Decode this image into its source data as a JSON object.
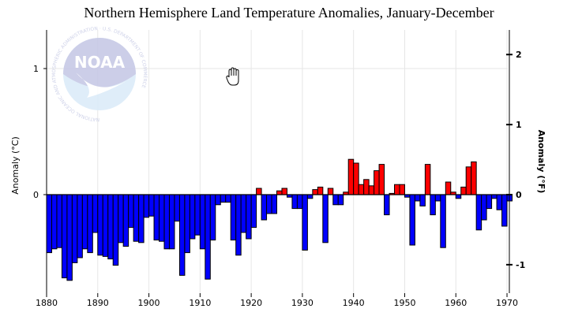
{
  "chart_data": {
    "type": "bar",
    "title": "Northern Hemisphere Land Temperature Anomalies, January-December",
    "xlabel": "",
    "ylabel": "Anomaly (°C)",
    "y2label": "Anomaly (°F)",
    "xlim": [
      1880,
      1970
    ],
    "ylim": [
      -0.77,
      1.32
    ],
    "x_ticks": [
      "1880",
      "1890",
      "1900",
      "1910",
      "1920",
      "1930",
      "1940",
      "1950",
      "1960",
      "1970"
    ],
    "y_ticks": [
      "0",
      "1"
    ],
    "y2_ticks": [
      "-1",
      "0",
      "1",
      "2"
    ],
    "grid": true,
    "positive_color": "#ff0000",
    "negative_color": "#0000ff",
    "x": [
      1880,
      1881,
      1882,
      1883,
      1884,
      1885,
      1886,
      1887,
      1888,
      1889,
      1890,
      1891,
      1892,
      1893,
      1894,
      1895,
      1896,
      1897,
      1898,
      1899,
      1900,
      1901,
      1902,
      1903,
      1904,
      1905,
      1906,
      1907,
      1908,
      1909,
      1910,
      1911,
      1912,
      1913,
      1914,
      1915,
      1916,
      1917,
      1918,
      1919,
      1920,
      1921,
      1922,
      1923,
      1924,
      1925,
      1926,
      1927,
      1928,
      1929,
      1930,
      1931,
      1932,
      1933,
      1934,
      1935,
      1936,
      1937,
      1938,
      1939,
      1940,
      1941,
      1942,
      1943,
      1944,
      1945,
      1946,
      1947,
      1948,
      1949,
      1950,
      1951,
      1952,
      1953,
      1954,
      1955,
      1956,
      1957,
      1958,
      1959,
      1960,
      1961,
      1962,
      1963,
      1964,
      1965,
      1966,
      1967,
      1968,
      1969,
      1970
    ],
    "values": [
      -0.46,
      -0.43,
      -0.42,
      -0.66,
      -0.68,
      -0.54,
      -0.5,
      -0.43,
      -0.46,
      -0.3,
      -0.48,
      -0.49,
      -0.51,
      -0.56,
      -0.38,
      -0.41,
      -0.26,
      -0.37,
      -0.38,
      -0.18,
      -0.17,
      -0.36,
      -0.37,
      -0.43,
      -0.43,
      -0.21,
      -0.64,
      -0.46,
      -0.35,
      -0.32,
      -0.43,
      -0.67,
      -0.36,
      -0.08,
      -0.06,
      -0.06,
      -0.36,
      -0.48,
      -0.3,
      -0.35,
      -0.26,
      0.05,
      -0.2,
      -0.15,
      -0.15,
      0.03,
      0.05,
      -0.02,
      -0.11,
      -0.11,
      -0.44,
      -0.03,
      0.04,
      0.06,
      -0.38,
      0.05,
      -0.08,
      -0.08,
      0.02,
      0.28,
      0.25,
      0.08,
      0.12,
      0.07,
      0.19,
      0.24,
      -0.16,
      0.01,
      0.08,
      0.08,
      -0.02,
      -0.4,
      -0.05,
      -0.09,
      0.24,
      -0.16,
      -0.05,
      -0.42,
      0.1,
      0.02,
      -0.03,
      0.06,
      0.22,
      0.26,
      -0.28,
      -0.2,
      -0.11,
      -0.03,
      -0.12,
      -0.25,
      -0.05
    ]
  },
  "watermark": {
    "name": "NOAA",
    "ring_text": "NATIONAL OCEANIC AND ATMOSPHERIC ADMINISTRATION · U.S. DEPARTMENT OF COMMERCE"
  },
  "cursor": "hand-cursor"
}
